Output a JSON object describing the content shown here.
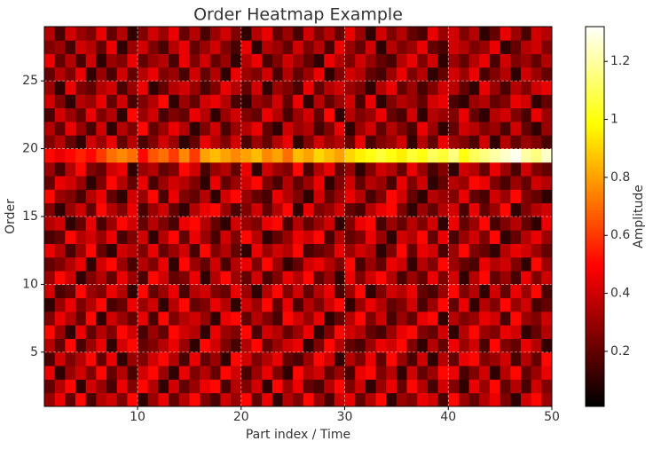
{
  "chart_data": {
    "type": "heatmap",
    "title": "Order Heatmap Example",
    "xlabel": "Part index / Time",
    "ylabel": "Order",
    "colorbar_label": "Amplitude",
    "colormap": "hot",
    "clim": [
      0.01,
      1.32
    ],
    "xlim": [
      1,
      50
    ],
    "ylim": [
      1,
      29
    ],
    "xticks": [
      10,
      20,
      30,
      40,
      50
    ],
    "yticks": [
      5,
      10,
      15,
      20,
      25
    ],
    "cticks": [
      0.2,
      0.4,
      0.6,
      0.8,
      1.0,
      1.2
    ],
    "grid": true,
    "z": [
      [
        0.3,
        0.45,
        0.2,
        0.5,
        0.15,
        0.35,
        0.4,
        0.25,
        0.5,
        0.1,
        0.3,
        0.45,
        0.2,
        0.35,
        0.5,
        0.25,
        0.15,
        0.4,
        0.3,
        0.5,
        0.2,
        0.45,
        0.1,
        0.35,
        0.25,
        0.5,
        0.3,
        0.15,
        0.4,
        0.45,
        0.2,
        0.35,
        0.5,
        0.1,
        0.3,
        0.25,
        0.45,
        0.4,
        0.15,
        0.5,
        0.3,
        0.2,
        0.35,
        0.45,
        0.25,
        0.1,
        0.4,
        0.5,
        0.3
      ],
      [
        0.2,
        0.35,
        0.5,
        0.1,
        0.4,
        0.3,
        0.15,
        0.45,
        0.25,
        0.5,
        0.35,
        0.1,
        0.4,
        0.2,
        0.3,
        0.45,
        0.5,
        0.15,
        0.35,
        0.25,
        0.4,
        0.1,
        0.5,
        0.3,
        0.45,
        0.2,
        0.15,
        0.35,
        0.5,
        0.25,
        0.4,
        0.1,
        0.3,
        0.45,
        0.2,
        0.5,
        0.35,
        0.15,
        0.4,
        0.25,
        0.1,
        0.45,
        0.3,
        0.5,
        0.2,
        0.35,
        0.15,
        0.4,
        0.25
      ],
      [
        0.45,
        0.1,
        0.3,
        0.4,
        0.25,
        0.5,
        0.2,
        0.35,
        0.15,
        0.4,
        0.5,
        0.3,
        0.1,
        0.45,
        0.25,
        0.35,
        0.2,
        0.5,
        0.4,
        0.15,
        0.3,
        0.45,
        0.25,
        0.1,
        0.5,
        0.35,
        0.4,
        0.2,
        0.3,
        0.15,
        0.45,
        0.5,
        0.25,
        0.35,
        0.1,
        0.4,
        0.2,
        0.3,
        0.5,
        0.45,
        0.15,
        0.25,
        0.4,
        0.1,
        0.35,
        0.5,
        0.2,
        0.3,
        0.45
      ],
      [
        0.15,
        0.4,
        0.25,
        0.35,
        0.5,
        0.2,
        0.45,
        0.1,
        0.3,
        0.25,
        0.4,
        0.5,
        0.35,
        0.15,
        0.45,
        0.2,
        0.3,
        0.1,
        0.5,
        0.4,
        0.25,
        0.35,
        0.45,
        0.2,
        0.15,
        0.3,
        0.5,
        0.4,
        0.1,
        0.35,
        0.25,
        0.45,
        0.2,
        0.5,
        0.3,
        0.15,
        0.4,
        0.1,
        0.35,
        0.2,
        0.45,
        0.5,
        0.25,
        0.3,
        0.4,
        0.15,
        0.35,
        0.2,
        0.5
      ],
      [
        0.35,
        0.2,
        0.5,
        0.15,
        0.3,
        0.45,
        0.1,
        0.4,
        0.5,
        0.2,
        0.25,
        0.35,
        0.45,
        0.3,
        0.1,
        0.5,
        0.4,
        0.25,
        0.15,
        0.35,
        0.5,
        0.2,
        0.3,
        0.4,
        0.45,
        0.1,
        0.25,
        0.5,
        0.35,
        0.2,
        0.15,
        0.3,
        0.45,
        0.4,
        0.5,
        0.25,
        0.1,
        0.35,
        0.2,
        0.45,
        0.3,
        0.4,
        0.15,
        0.5,
        0.25,
        0.2,
        0.45,
        0.35,
        0.1
      ],
      [
        0.5,
        0.3,
        0.1,
        0.45,
        0.2,
        0.35,
        0.25,
        0.5,
        0.4,
        0.15,
        0.3,
        0.2,
        0.5,
        0.4,
        0.35,
        0.1,
        0.45,
        0.3,
        0.25,
        0.5,
        0.15,
        0.4,
        0.35,
        0.2,
        0.3,
        0.45,
        0.1,
        0.25,
        0.5,
        0.4,
        0.35,
        0.2,
        0.15,
        0.3,
        0.45,
        0.5,
        0.25,
        0.2,
        0.4,
        0.1,
        0.35,
        0.5,
        0.3,
        0.25,
        0.45,
        0.4,
        0.1,
        0.2,
        0.35
      ],
      [
        0.25,
        0.45,
        0.35,
        0.2,
        0.5,
        0.1,
        0.4,
        0.3,
        0.2,
        0.45,
        0.15,
        0.5,
        0.25,
        0.35,
        0.4,
        0.3,
        0.1,
        0.45,
        0.5,
        0.2,
        0.35,
        0.25,
        0.15,
        0.5,
        0.4,
        0.3,
        0.45,
        0.1,
        0.2,
        0.35,
        0.5,
        0.25,
        0.4,
        0.15,
        0.3,
        0.2,
        0.45,
        0.5,
        0.1,
        0.35,
        0.25,
        0.3,
        0.45,
        0.4,
        0.15,
        0.5,
        0.3,
        0.25,
        0.4
      ],
      [
        0.1,
        0.3,
        0.45,
        0.25,
        0.35,
        0.5,
        0.15,
        0.2,
        0.45,
        0.3,
        0.4,
        0.1,
        0.35,
        0.5,
        0.2,
        0.25,
        0.45,
        0.35,
        0.1,
        0.4,
        0.3,
        0.5,
        0.2,
        0.45,
        0.15,
        0.35,
        0.25,
        0.4,
        0.5,
        0.1,
        0.3,
        0.45,
        0.35,
        0.2,
        0.25,
        0.4,
        0.15,
        0.3,
        0.5,
        0.2,
        0.45,
        0.1,
        0.35,
        0.25,
        0.5,
        0.3,
        0.4,
        0.15,
        0.2
      ],
      [
        0.4,
        0.15,
        0.2,
        0.5,
        0.3,
        0.25,
        0.45,
        0.35,
        0.1,
        0.5,
        0.2,
        0.3,
        0.45,
        0.15,
        0.35,
        0.4,
        0.25,
        0.2,
        0.45,
        0.3,
        0.1,
        0.35,
        0.5,
        0.25,
        0.4,
        0.2,
        0.35,
        0.45,
        0.15,
        0.3,
        0.5,
        0.1,
        0.25,
        0.4,
        0.35,
        0.45,
        0.2,
        0.15,
        0.3,
        0.5,
        0.25,
        0.35,
        0.1,
        0.4,
        0.2,
        0.45,
        0.3,
        0.5,
        0.15
      ],
      [
        0.3,
        0.5,
        0.4,
        0.1,
        0.25,
        0.35,
        0.2,
        0.45,
        0.3,
        0.15,
        0.5,
        0.4,
        0.2,
        0.25,
        0.45,
        0.1,
        0.35,
        0.5,
        0.3,
        0.2,
        0.4,
        0.15,
        0.25,
        0.45,
        0.35,
        0.5,
        0.2,
        0.3,
        0.1,
        0.45,
        0.25,
        0.4,
        0.5,
        0.35,
        0.15,
        0.3,
        0.2,
        0.45,
        0.25,
        0.4,
        0.1,
        0.35,
        0.5,
        0.2,
        0.3,
        0.15,
        0.45,
        0.25,
        0.4
      ],
      [
        0.2,
        0.25,
        0.35,
        0.45,
        0.1,
        0.4,
        0.5,
        0.3,
        0.15,
        0.35,
        0.25,
        0.45,
        0.1,
        0.5,
        0.3,
        0.2,
        0.4,
        0.15,
        0.35,
        0.45,
        0.25,
        0.5,
        0.3,
        0.1,
        0.2,
        0.4,
        0.45,
        0.35,
        0.25,
        0.5,
        0.15,
        0.3,
        0.2,
        0.45,
        0.4,
        0.1,
        0.35,
        0.25,
        0.5,
        0.3,
        0.2,
        0.15,
        0.45,
        0.35,
        0.4,
        0.25,
        0.1,
        0.5,
        0.3
      ],
      [
        0.45,
        0.35,
        0.15,
        0.3,
        0.5,
        0.2,
        0.1,
        0.4,
        0.35,
        0.25,
        0.45,
        0.2,
        0.3,
        0.4,
        0.15,
        0.5,
        0.25,
        0.35,
        0.2,
        0.1,
        0.45,
        0.3,
        0.4,
        0.35,
        0.5,
        0.15,
        0.2,
        0.25,
        0.45,
        0.3,
        0.4,
        0.35,
        0.1,
        0.25,
        0.5,
        0.2,
        0.45,
        0.4,
        0.15,
        0.3,
        0.5,
        0.25,
        0.2,
        0.1,
        0.35,
        0.45,
        0.4,
        0.3,
        0.2
      ],
      [
        0.15,
        0.2,
        0.5,
        0.35,
        0.4,
        0.3,
        0.45,
        0.15,
        0.25,
        0.4,
        0.1,
        0.35,
        0.5,
        0.2,
        0.45,
        0.3,
        0.15,
        0.4,
        0.25,
        0.5,
        0.35,
        0.1,
        0.2,
        0.3,
        0.45,
        0.4,
        0.5,
        0.15,
        0.35,
        0.2,
        0.25,
        0.45,
        0.3,
        0.1,
        0.4,
        0.35,
        0.5,
        0.2,
        0.45,
        0.15,
        0.3,
        0.4,
        0.25,
        0.5,
        0.1,
        0.2,
        0.35,
        0.45,
        0.3
      ],
      [
        0.35,
        0.4,
        0.1,
        0.2,
        0.45,
        0.15,
        0.3,
        0.5,
        0.4,
        0.2,
        0.35,
        0.25,
        0.15,
        0.45,
        0.5,
        0.35,
        0.2,
        0.1,
        0.4,
        0.3,
        0.25,
        0.45,
        0.5,
        0.15,
        0.35,
        0.2,
        0.3,
        0.4,
        0.1,
        0.25,
        0.45,
        0.5,
        0.15,
        0.3,
        0.2,
        0.35,
        0.25,
        0.4,
        0.1,
        0.45,
        0.2,
        0.3,
        0.5,
        0.15,
        0.25,
        0.35,
        0.2,
        0.1,
        0.45
      ],
      [
        0.25,
        0.1,
        0.3,
        0.4,
        0.2,
        0.5,
        0.35,
        0.25,
        0.45,
        0.15,
        0.3,
        0.4,
        0.2,
        0.1,
        0.35,
        0.45,
        0.5,
        0.3,
        0.15,
        0.25,
        0.4,
        0.2,
        0.35,
        0.5,
        0.1,
        0.45,
        0.25,
        0.3,
        0.4,
        0.2,
        0.15,
        0.35,
        0.45,
        0.5,
        0.25,
        0.1,
        0.3,
        0.2,
        0.35,
        0.4,
        0.15,
        0.45,
        0.2,
        0.3,
        0.5,
        0.1,
        0.25,
        0.35,
        0.4
      ],
      [
        0.5,
        0.3,
        0.25,
        0.15,
        0.35,
        0.45,
        0.2,
        0.1,
        0.4,
        0.3,
        0.5,
        0.15,
        0.45,
        0.25,
        0.2,
        0.35,
        0.1,
        0.4,
        0.5,
        0.3,
        0.2,
        0.15,
        0.45,
        0.35,
        0.25,
        0.1,
        0.4,
        0.2,
        0.3,
        0.45,
        0.35,
        0.15,
        0.25,
        0.5,
        0.4,
        0.2,
        0.1,
        0.35,
        0.3,
        0.25,
        0.45,
        0.2,
        0.15,
        0.4,
        0.3,
        0.5,
        0.25,
        0.2,
        0.1
      ],
      [
        0.2,
        0.45,
        0.4,
        0.3,
        0.1,
        0.25,
        0.5,
        0.35,
        0.2,
        0.45,
        0.15,
        0.3,
        0.4,
        0.35,
        0.25,
        0.1,
        0.45,
        0.2,
        0.3,
        0.4,
        0.5,
        0.25,
        0.15,
        0.35,
        0.2,
        0.3,
        0.45,
        0.1,
        0.25,
        0.4,
        0.2,
        0.35,
        0.3,
        0.15,
        0.45,
        0.25,
        0.4,
        0.1,
        0.2,
        0.35,
        0.3,
        0.5,
        0.45,
        0.25,
        0.15,
        0.3,
        0.2,
        0.4,
        0.35
      ],
      [
        0.3,
        0.15,
        0.35,
        0.5,
        0.25,
        0.2,
        0.4,
        0.45,
        0.1,
        0.3,
        0.35,
        0.2,
        0.25,
        0.5,
        0.4,
        0.15,
        0.3,
        0.35,
        0.2,
        0.45,
        0.1,
        0.4,
        0.3,
        0.25,
        0.5,
        0.15,
        0.35,
        0.45,
        0.2,
        0.3,
        0.1,
        0.25,
        0.4,
        0.35,
        0.2,
        0.45,
        0.3,
        0.15,
        0.25,
        0.1,
        0.4,
        0.35,
        0.2,
        0.45,
        0.3,
        0.15,
        0.4,
        0.25,
        0.2
      ],
      [
        0.5,
        0.45,
        0.5,
        0.55,
        0.5,
        0.6,
        0.7,
        0.75,
        0.7,
        0.5,
        0.65,
        0.7,
        0.6,
        0.75,
        0.6,
        0.8,
        0.85,
        0.8,
        0.75,
        0.8,
        0.85,
        0.75,
        0.8,
        0.7,
        0.85,
        0.8,
        0.9,
        0.85,
        0.8,
        0.9,
        0.95,
        1.0,
        1.05,
        1.0,
        0.95,
        1.05,
        1.0,
        1.1,
        1.05,
        1.15,
        1.0,
        1.1,
        1.15,
        1.2,
        1.25,
        1.3,
        1.2,
        1.15,
        1.25
      ],
      [
        0.25,
        0.35,
        0.2,
        0.1,
        0.4,
        0.3,
        0.45,
        0.2,
        0.35,
        0.15,
        0.25,
        0.4,
        0.3,
        0.1,
        0.2,
        0.45,
        0.35,
        0.25,
        0.4,
        0.15,
        0.3,
        0.2,
        0.35,
        0.45,
        0.1,
        0.25,
        0.4,
        0.3,
        0.35,
        0.2,
        0.45,
        0.15,
        0.25,
        0.3,
        0.4,
        0.1,
        0.35,
        0.2,
        0.45,
        0.3,
        0.25,
        0.15,
        0.4,
        0.1,
        0.35,
        0.2,
        0.3,
        0.25,
        0.15
      ],
      [
        0.35,
        0.2,
        0.45,
        0.3,
        0.15,
        0.4,
        0.1,
        0.35,
        0.25,
        0.5,
        0.2,
        0.3,
        0.45,
        0.35,
        0.1,
        0.25,
        0.4,
        0.15,
        0.3,
        0.35,
        0.45,
        0.2,
        0.1,
        0.4,
        0.3,
        0.35,
        0.15,
        0.25,
        0.45,
        0.1,
        0.3,
        0.4,
        0.2,
        0.35,
        0.25,
        0.15,
        0.45,
        0.3,
        0.1,
        0.2,
        0.4,
        0.35,
        0.25,
        0.3,
        0.15,
        0.4,
        0.2,
        0.1,
        0.3
      ],
      [
        0.15,
        0.4,
        0.3,
        0.2,
        0.45,
        0.25,
        0.35,
        0.1,
        0.5,
        0.3,
        0.4,
        0.15,
        0.25,
        0.2,
        0.45,
        0.35,
        0.1,
        0.3,
        0.4,
        0.25,
        0.2,
        0.45,
        0.35,
        0.15,
        0.3,
        0.4,
        0.2,
        0.5,
        0.1,
        0.35,
        0.25,
        0.3,
        0.45,
        0.2,
        0.15,
        0.4,
        0.1,
        0.35,
        0.3,
        0.25,
        0.45,
        0.2,
        0.1,
        0.35,
        0.4,
        0.25,
        0.15,
        0.45,
        0.3
      ],
      [
        0.4,
        0.25,
        0.1,
        0.35,
        0.3,
        0.45,
        0.2,
        0.4,
        0.15,
        0.25,
        0.35,
        0.5,
        0.1,
        0.3,
        0.2,
        0.4,
        0.45,
        0.35,
        0.15,
        0.1,
        0.3,
        0.25,
        0.4,
        0.2,
        0.45,
        0.1,
        0.35,
        0.2,
        0.3,
        0.4,
        0.15,
        0.45,
        0.1,
        0.25,
        0.35,
        0.3,
        0.2,
        0.4,
        0.45,
        0.15,
        0.1,
        0.3,
        0.35,
        0.2,
        0.25,
        0.45,
        0.4,
        0.1,
        0.2
      ],
      [
        0.3,
        0.1,
        0.45,
        0.25,
        0.2,
        0.35,
        0.4,
        0.15,
        0.3,
        0.45,
        0.1,
        0.2,
        0.35,
        0.4,
        0.3,
        0.15,
        0.25,
        0.45,
        0.35,
        0.2,
        0.4,
        0.1,
        0.3,
        0.25,
        0.15,
        0.45,
        0.2,
        0.35,
        0.4,
        0.3,
        0.25,
        0.1,
        0.35,
        0.45,
        0.2,
        0.3,
        0.15,
        0.25,
        0.4,
        0.35,
        0.2,
        0.1,
        0.45,
        0.3,
        0.15,
        0.35,
        0.25,
        0.4,
        0.45
      ],
      [
        0.2,
        0.35,
        0.25,
        0.45,
        0.1,
        0.3,
        0.15,
        0.4,
        0.2,
        0.35,
        0.45,
        0.25,
        0.3,
        0.15,
        0.4,
        0.2,
        0.35,
        0.1,
        0.45,
        0.3,
        0.25,
        0.4,
        0.15,
        0.35,
        0.2,
        0.3,
        0.45,
        0.1,
        0.25,
        0.4,
        0.35,
        0.2,
        0.15,
        0.3,
        0.45,
        0.25,
        0.35,
        0.1,
        0.2,
        0.4,
        0.3,
        0.45,
        0.15,
        0.25,
        0.35,
        0.1,
        0.4,
        0.3,
        0.2
      ],
      [
        0.45,
        0.2,
        0.35,
        0.15,
        0.4,
        0.1,
        0.3,
        0.25,
        0.45,
        0.2,
        0.3,
        0.35,
        0.15,
        0.45,
        0.25,
        0.4,
        0.2,
        0.3,
        0.1,
        0.35,
        0.45,
        0.15,
        0.25,
        0.4,
        0.3,
        0.2,
        0.1,
        0.45,
        0.35,
        0.25,
        0.4,
        0.3,
        0.2,
        0.15,
        0.35,
        0.45,
        0.25,
        0.4,
        0.1,
        0.3,
        0.2,
        0.35,
        0.45,
        0.15,
        0.4,
        0.25,
        0.3,
        0.2,
        0.35
      ],
      [
        0.25,
        0.3,
        0.15,
        0.4,
        0.35,
        0.2,
        0.45,
        0.1,
        0.3,
        0.4,
        0.25,
        0.15,
        0.35,
        0.45,
        0.2,
        0.3,
        0.4,
        0.25,
        0.15,
        0.45,
        0.1,
        0.35,
        0.3,
        0.2,
        0.4,
        0.25,
        0.35,
        0.15,
        0.45,
        0.3,
        0.2,
        0.4,
        0.1,
        0.35,
        0.25,
        0.3,
        0.45,
        0.2,
        0.15,
        0.4,
        0.35,
        0.25,
        0.3,
        0.45,
        0.1,
        0.2,
        0.35,
        0.4,
        0.25
      ],
      [
        0.35,
        0.15,
        0.4,
        0.3,
        0.25,
        0.45,
        0.2,
        0.35,
        0.1,
        0.25,
        0.4,
        0.3,
        0.45,
        0.2,
        0.35,
        0.15,
        0.3,
        0.4,
        0.25,
        0.1,
        0.35,
        0.45,
        0.2,
        0.3,
        0.15,
        0.4,
        0.25,
        0.35,
        0.2,
        0.45,
        0.3,
        0.1,
        0.4,
        0.25,
        0.35,
        0.2,
        0.15,
        0.45,
        0.3,
        0.4,
        0.25,
        0.35,
        0.1,
        0.2,
        0.45,
        0.3,
        0.15,
        0.4,
        0.35
      ]
    ]
  }
}
